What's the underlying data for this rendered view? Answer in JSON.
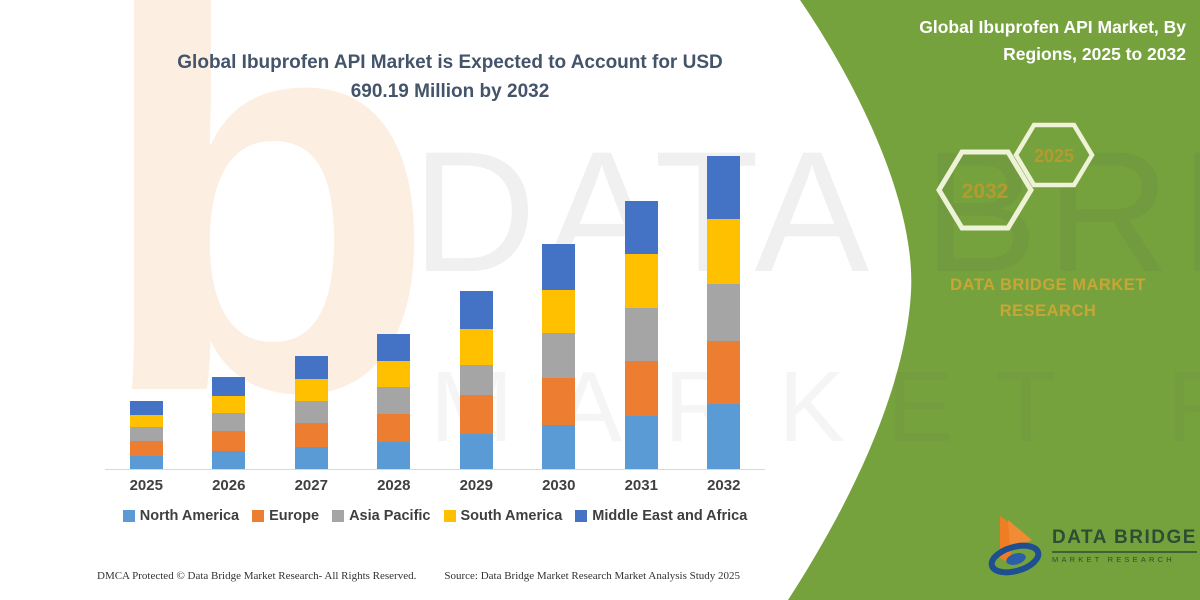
{
  "main": {
    "title": "Global Ibuprofen API Market is Expected to Account for USD 690.19 Million by 2032"
  },
  "chart_data": {
    "type": "bar",
    "stacked": true,
    "title": "Global Ibuprofen API Market is Expected to Account for USD 690.19 Million by 2032",
    "unit": "USD Million",
    "categories": [
      "2025",
      "2026",
      "2027",
      "2028",
      "2029",
      "2030",
      "2031",
      "2032"
    ],
    "series": [
      {
        "name": "North America",
        "color": "#5B9BD5",
        "values": [
          29,
          40,
          49,
          59,
          77,
          98,
          117,
          143
        ]
      },
      {
        "name": "Europe",
        "color": "#ED7D31",
        "values": [
          33,
          43,
          52,
          62,
          86,
          103,
          121,
          139
        ]
      },
      {
        "name": "Asia Pacific",
        "color": "#A5A5A5",
        "values": [
          31,
          41,
          50,
          59,
          66,
          99,
          118,
          126
        ]
      },
      {
        "name": "South America",
        "color": "#FFC000",
        "values": [
          27,
          38,
          48,
          58,
          79,
          96,
          117,
          143
        ]
      },
      {
        "name": "Middle East and Africa",
        "color": "#4472C4",
        "values": [
          30,
          41,
          50,
          60,
          84,
          100,
          118,
          139.19
        ]
      }
    ],
    "totals": [
      150,
      203,
      249,
      298,
      392,
      496,
      591,
      690.19
    ],
    "ylim": [
      0,
      700
    ],
    "grid": false,
    "legend_position": "bottom",
    "axis_labels_shown": false
  },
  "right_panel": {
    "title": "Global Ibuprofen API Market, By Regions, 2025 to 2032",
    "hexagons": [
      {
        "label": "2032"
      },
      {
        "label": "2025"
      }
    ],
    "brand": "DATA BRIDGE MARKET RESEARCH"
  },
  "watermark": {
    "line1": "DATA BRIDGE",
    "line2": "MARKET RESEARCH",
    "letter": "b"
  },
  "logo": {
    "title": "DATA BRIDGE",
    "subtitle": "MARKET RESEARCH"
  },
  "footer": {
    "left": "DMCA Protected © Data Bridge Market Research-  All Rights Reserved.",
    "right": "Source: Data Bridge Market Research Market Analysis Study 2025"
  },
  "colors": {
    "panel_green": "#76a23e",
    "gold": "#c7a636",
    "title_teal": "#44546a",
    "hex_border": "#eef3d8",
    "logo_orange": "#ef7d23",
    "logo_blue": "#1d4f91",
    "logo_text_green": "#2e4e33"
  }
}
